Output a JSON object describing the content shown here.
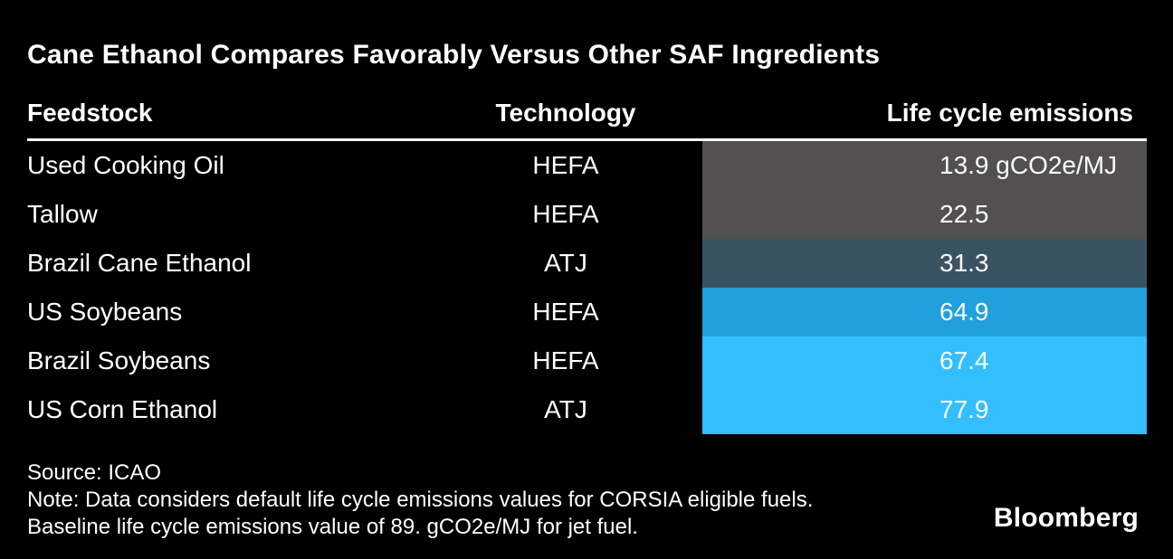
{
  "title": "Cane Ethanol Compares Favorably Versus Other SAF Ingredients",
  "colors": {
    "background": "#000000",
    "text": "#ffffff",
    "bar_dark_gray": "#535051",
    "bar_slate": "#3a5362",
    "bar_medium_blue": "#21a0dd",
    "bar_light_blue": "#33bfff"
  },
  "table": {
    "headers": {
      "feedstock": "Feedstock",
      "technology": "Technology",
      "emissions": "Life cycle emissions"
    },
    "rows": [
      {
        "feedstock": "Used Cooking Oil",
        "technology": "HEFA",
        "value": "13.9 gCO2e/MJ",
        "color": "#535051"
      },
      {
        "feedstock": "Tallow",
        "technology": "HEFA",
        "value": "22.5",
        "color": "#535051"
      },
      {
        "feedstock": "Brazil Cane Ethanol",
        "technology": "ATJ",
        "value": "31.3",
        "color": "#3a5362"
      },
      {
        "feedstock": "US Soybeans",
        "technology": "HEFA",
        "value": "64.9",
        "color": "#21a0dd"
      },
      {
        "feedstock": "Brazil Soybeans",
        "technology": "HEFA",
        "value": "67.4",
        "color": "#33bfff"
      },
      {
        "feedstock": "US Corn Ethanol",
        "technology": "ATJ",
        "value": "77.9",
        "color": "#33bfff"
      }
    ]
  },
  "footer": {
    "source": "Source: ICAO",
    "note_line1": "Note: Data considers default life cycle emissions values for CORSIA eligible fuels.",
    "note_line2": "Baseline life cycle emissions value of 89. gCO2e/MJ for jet fuel.",
    "brand": "Bloomberg"
  },
  "chart_data": {
    "type": "table",
    "title": "Cane Ethanol Compares Favorably Versus Other SAF Ingredients",
    "columns": [
      "Feedstock",
      "Technology",
      "Life cycle emissions"
    ],
    "categories": [
      "Used Cooking Oil",
      "Tallow",
      "Brazil Cane Ethanol",
      "US Soybeans",
      "Brazil Soybeans",
      "US Corn Ethanol"
    ],
    "technologies": [
      "HEFA",
      "HEFA",
      "ATJ",
      "HEFA",
      "HEFA",
      "ATJ"
    ],
    "values": [
      13.9,
      22.5,
      31.3,
      64.9,
      67.4,
      77.9
    ],
    "unit": "gCO2e/MJ",
    "row_colors": [
      "#535051",
      "#535051",
      "#3a5362",
      "#21a0dd",
      "#33bfff",
      "#33bfff"
    ],
    "source": "ICAO",
    "notes": [
      "Data considers default life cycle emissions values for CORSIA eligible fuels.",
      "Baseline life cycle emissions value of 89. gCO2e/MJ for jet fuel."
    ]
  }
}
